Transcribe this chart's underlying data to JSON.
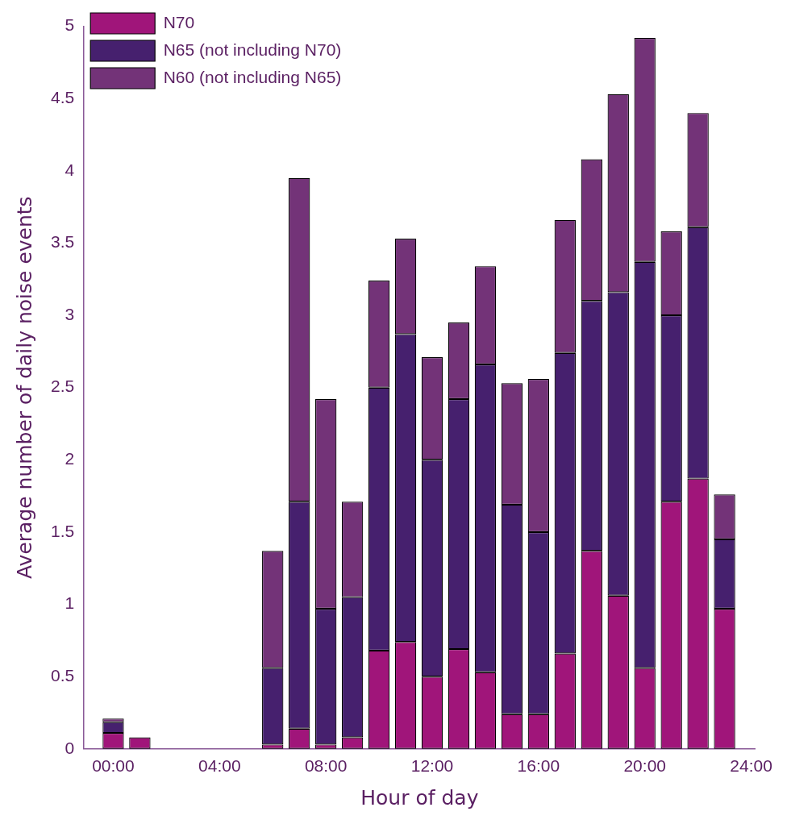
{
  "chart_data": {
    "type": "bar",
    "stacked": true,
    "xlabel": "Hour of day",
    "ylabel": "Average number of daily noise events",
    "x": [
      0,
      1,
      2,
      3,
      4,
      5,
      6,
      7,
      8,
      9,
      10,
      11,
      12,
      13,
      14,
      15,
      16,
      17,
      18,
      19,
      20,
      21,
      22,
      23
    ],
    "series": [
      {
        "name": "N70",
        "color": "#a0157a",
        "values": [
          0.11,
          0.08,
          0,
          0,
          0,
          0,
          0.03,
          0.14,
          0.03,
          0.08,
          0.68,
          0.74,
          0.5,
          0.69,
          0.53,
          0.24,
          0.24,
          0.66,
          1.37,
          1.06,
          0.56,
          1.71,
          1.87,
          0.97
        ]
      },
      {
        "name": "N65 (not including N70)",
        "color": "#46206e",
        "values": [
          0.075,
          0,
          0,
          0,
          0,
          0,
          0.53,
          1.57,
          0.94,
          0.97,
          1.82,
          2.13,
          1.5,
          1.73,
          2.13,
          1.45,
          1.26,
          2.08,
          1.73,
          2.1,
          2.81,
          1.29,
          1.74,
          0.48
        ]
      },
      {
        "name": "N60 (not including N65)",
        "color": "#733378",
        "values": [
          0.025,
          0,
          0,
          0,
          0,
          0,
          0.81,
          2.24,
          1.45,
          0.66,
          0.74,
          0.66,
          0.71,
          0.53,
          0.68,
          0.84,
          1.06,
          0.92,
          0.98,
          1.37,
          1.55,
          0.58,
          0.79,
          0.31
        ]
      }
    ],
    "xlim": [
      -1.1,
      24.15
    ],
    "xticks": [
      {
        "value": 0,
        "label": "00:00"
      },
      {
        "value": 4,
        "label": "04:00"
      },
      {
        "value": 8,
        "label": "08:00"
      },
      {
        "value": 12,
        "label": "12:00"
      },
      {
        "value": 16,
        "label": "16:00"
      },
      {
        "value": 20,
        "label": "20:00"
      },
      {
        "value": 24,
        "label": "24:00"
      }
    ],
    "ylim": [
      0,
      5
    ],
    "yticks": [
      0,
      0.5,
      1,
      1.5,
      2,
      2.5,
      3,
      3.5,
      4,
      4.5,
      5
    ],
    "grid": false,
    "legend": "top left"
  }
}
